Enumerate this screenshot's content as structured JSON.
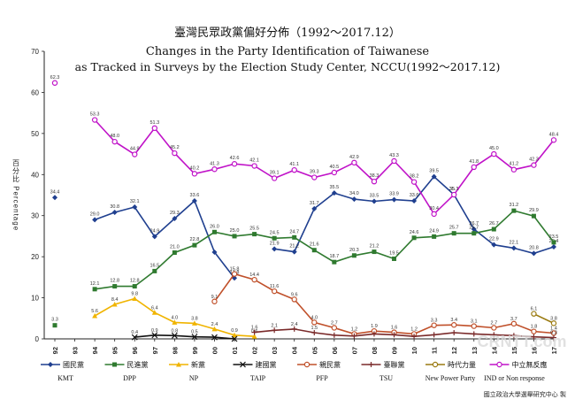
{
  "chart_data": {
    "type": "line",
    "title_zh": "臺灣民眾政黨偏好分佈（1992～2017.12）",
    "title_en_1": "Changes in the Party Identification of Taiwanese",
    "title_en_2": "as Tracked in Surveys by the Election Study Center, NCCU(1992～2017.12)",
    "ylabel": "百分比 Percentage",
    "ylim": [
      0,
      70
    ],
    "yticks": [
      0,
      10,
      20,
      30,
      40,
      50,
      60,
      70
    ],
    "grid": false,
    "legend_position": "bottom",
    "x": [
      "92",
      "93",
      "94",
      "95",
      "96",
      "97",
      "98",
      "99",
      "00",
      "01",
      "02",
      "03",
      "04",
      "05",
      "06",
      "07",
      "08",
      "09",
      "10",
      "11",
      "12",
      "13",
      "14",
      "15",
      "16",
      "17"
    ],
    "series": [
      {
        "name": "國民黨",
        "name_en": "KMT",
        "color": "#1f3f8f",
        "marker": "diamond",
        "values": [
          34.4,
          null,
          29.0,
          30.8,
          32.1,
          24.9,
          29.3,
          33.6,
          21.1,
          14.8,
          null,
          21.9,
          21.2,
          31.7,
          35.5,
          34.0,
          33.5,
          33.9,
          33.6,
          39.5,
          35.1,
          26.7,
          22.9,
          22.1,
          20.8,
          22.4
        ],
        "labels": [
          "34.4",
          null,
          "29.0",
          "30.8",
          "32.1",
          "24.9",
          "29.3",
          "33.6",
          null,
          "14.8",
          null,
          "21.9",
          "21.2",
          "31.7",
          "35.5",
          "34.0",
          "33.5",
          "33.9",
          "33.6",
          "39.5",
          "35.1",
          "26.7",
          "22.9",
          "22.1",
          "20.8",
          "22.4"
        ]
      },
      {
        "name": "民進黨",
        "name_en": "DPP",
        "color": "#2f7a2f",
        "marker": "square",
        "values": [
          3.3,
          null,
          12.1,
          12.8,
          12.8,
          16.5,
          21.0,
          22.8,
          26.0,
          25.0,
          25.5,
          24.5,
          24.7,
          21.6,
          18.7,
          20.3,
          21.2,
          19.5,
          24.6,
          24.9,
          25.7,
          25.7,
          26.7,
          31.2,
          29.9,
          23.5
        ],
        "labels": [
          "3.3",
          null,
          "12.1",
          "12.8",
          "12.8",
          "16.5",
          "21.0",
          "22.8",
          "26.0",
          "25.0",
          "25.5",
          "24.5",
          "24.7",
          "21.6",
          "18.7",
          "20.3",
          "21.2",
          "19.5",
          "24.6",
          "24.9",
          "25.7",
          "25.7",
          "26.7",
          "31.2",
          "29.9",
          "23.5"
        ]
      },
      {
        "name": "新黨",
        "name_en": "NP",
        "color": "#f0b400",
        "marker": "triangle",
        "values": [
          null,
          null,
          5.6,
          8.4,
          9.8,
          6.4,
          4.0,
          3.8,
          2.4,
          0.9,
          0.6,
          null,
          null,
          null,
          null,
          null,
          null,
          null,
          null,
          null,
          null,
          null,
          null,
          null,
          null,
          null
        ],
        "labels": [
          null,
          null,
          "5.6",
          "8.4",
          "9.8",
          "6.4",
          "4.0",
          "3.8",
          "2.4",
          "0.9",
          "0.6",
          null,
          null,
          null,
          null,
          null,
          null,
          null,
          null,
          null,
          null,
          null,
          null,
          null,
          null,
          null
        ]
      },
      {
        "name": "建國黨",
        "name_en": "TAIP",
        "color": "#111111",
        "marker": "x",
        "values": [
          null,
          null,
          null,
          null,
          0.4,
          0.9,
          0.8,
          0.5,
          0.4,
          0.0,
          null,
          null,
          null,
          null,
          null,
          null,
          null,
          null,
          null,
          null,
          null,
          null,
          null,
          null,
          null,
          null
        ],
        "labels": [
          null,
          null,
          null,
          null,
          "0.4",
          "0.9",
          "0.8",
          "0.5",
          null,
          null,
          null,
          null,
          null,
          null,
          null,
          null,
          null,
          null,
          null,
          null,
          null,
          null,
          null,
          null,
          null,
          null
        ]
      },
      {
        "name": "親民黨",
        "name_en": "PFP",
        "color": "#c0502a",
        "marker": "circle",
        "values": [
          null,
          null,
          null,
          null,
          null,
          null,
          null,
          null,
          9.1,
          15.8,
          14.4,
          11.6,
          9.6,
          4.0,
          2.7,
          1.2,
          1.9,
          1.6,
          1.2,
          3.3,
          3.4,
          3.1,
          2.7,
          3.7,
          1.8,
          1.4
        ],
        "labels": [
          null,
          null,
          null,
          null,
          null,
          null,
          null,
          null,
          "9.1",
          "15.8",
          "14.4",
          "11.6",
          "9.6",
          "4.0",
          "2.7",
          "1.2",
          "1.9",
          "1.6",
          "1.2",
          "3.3",
          "3.4",
          "3.1",
          "2.7",
          "3.7",
          "1.8",
          "1.4"
        ]
      },
      {
        "name": "臺聯黨",
        "name_en": "TSU",
        "color": "#7a2a2a",
        "marker": "plus",
        "values": [
          null,
          null,
          null,
          null,
          null,
          null,
          null,
          null,
          null,
          null,
          1.6,
          2.1,
          2.4,
          1.5,
          0.9,
          0.7,
          1.2,
          1.0,
          0.6,
          1.0,
          1.5,
          1.2,
          1.0,
          0.8,
          0.5,
          0.3
        ],
        "labels": [
          null,
          null,
          null,
          null,
          null,
          null,
          null,
          null,
          null,
          null,
          "1.6",
          "2.1",
          "2.4",
          "1.5",
          null,
          null,
          null,
          null,
          null,
          null,
          null,
          null,
          null,
          null,
          null,
          "0.3"
        ]
      },
      {
        "name": "時代力量",
        "name_en": "New Power Party",
        "color": "#9a7a10",
        "marker": "circle",
        "values": [
          null,
          null,
          null,
          null,
          null,
          null,
          null,
          null,
          null,
          null,
          null,
          null,
          null,
          null,
          null,
          null,
          null,
          null,
          null,
          null,
          null,
          null,
          null,
          null,
          6.1,
          3.8
        ],
        "labels": [
          null,
          null,
          null,
          null,
          null,
          null,
          null,
          null,
          null,
          null,
          null,
          null,
          null,
          null,
          null,
          null,
          null,
          null,
          null,
          null,
          null,
          null,
          null,
          null,
          "6.1",
          "3.8"
        ]
      },
      {
        "name": "中立無反應",
        "name_en": "IND or Non response",
        "color": "#c012c8",
        "marker": "circle",
        "values": [
          62.3,
          null,
          53.3,
          48.0,
          44.9,
          51.3,
          45.2,
          40.2,
          41.3,
          42.6,
          42.1,
          39.1,
          41.1,
          39.3,
          40.5,
          42.9,
          38.3,
          43.3,
          38.2,
          30.4,
          35.1,
          41.8,
          45.0,
          41.2,
          42.3,
          48.4
        ],
        "labels": [
          "62.3",
          null,
          "53.3",
          "48.0",
          "44.9",
          "51.3",
          "45.2",
          "40.2",
          "41.3",
          "42.6",
          "42.1",
          "39.1",
          "41.1",
          "39.3",
          "40.5",
          "42.9",
          "38.3",
          "43.3",
          "38.2",
          "30.4",
          "35.1",
          "41.8",
          "45.0",
          "41.2",
          "42.3",
          "48.4"
        ]
      }
    ]
  },
  "footer": {
    "source": "國立政治大學選舉研究中心 製",
    "watermark": "CRNTT.com"
  },
  "colors": {
    "background": "#ffffff",
    "axis": "#222222"
  }
}
